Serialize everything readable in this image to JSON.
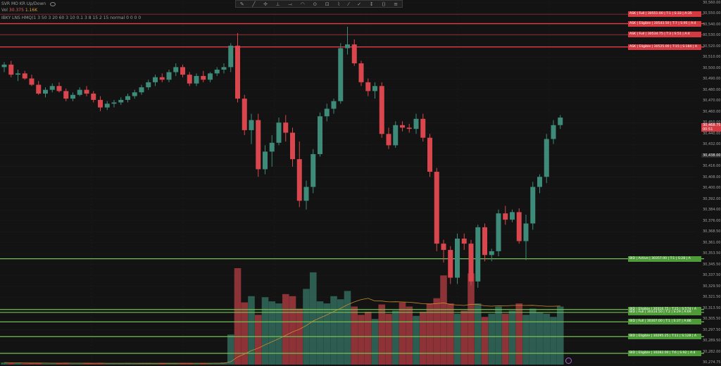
{
  "header": {
    "line1": "SVR MO KR Up/Down",
    "vol_label": "Vol",
    "vol_value1": "30.375",
    "vol_value2": "1.16K",
    "line3": "IBKY LNS HMQ)1 3 50 3 20 60 3 10 0.1 3 8 15 2 15 normal 0 0 0 0"
  },
  "toolbar": {
    "icons": [
      "✎",
      "╱",
      "✢",
      "⊥",
      "⤙",
      "◠",
      "⊙",
      "⊡",
      "⌇",
      "⁄",
      "✓",
      "↕",
      "⟨⟩",
      "≡"
    ]
  },
  "colors": {
    "up": "#3d8b78",
    "down": "#d9464d",
    "ask_line": "#e53a43",
    "bid_line": "#73c152",
    "bid_tag": "#4f9a39",
    "ask_tag": "#d33a42",
    "ma": "#c98b2e"
  },
  "chart_data": {
    "type": "candlestick",
    "ylim": [
      30274.75,
      30560
    ],
    "y_ticks": [
      "30,560.00",
      "30,550.00",
      "30,540.00",
      "30,530.00",
      "30,520.00",
      "30,510.00",
      "30,500.00",
      "30,490.00",
      "30,480.00",
      "30,470.00",
      "30,460.00",
      "30,450.00",
      "30,440.00",
      "30,432.00",
      "30,424.00",
      "30,416.00",
      "30,408.00",
      "30,400.00",
      "30,392.00",
      "30,384.00",
      "30,376.00",
      "30,368.50",
      "30,361.00",
      "30,353.50",
      "30,345.50",
      "30,337.50",
      "30,329.50",
      "30,321.50",
      "30,313.50",
      "30,305.50",
      "30,297.50",
      "30,289.50",
      "30,282.00",
      "30,274.75"
    ],
    "last_price": "30,468.75",
    "last_price_sub": "00:51",
    "crosshair_price": "30,438.00",
    "candles": [
      {
        "o": 30509,
        "h": 30513,
        "l": 30505,
        "c": 30511
      },
      {
        "o": 30511,
        "h": 30514,
        "l": 30501,
        "c": 30503
      },
      {
        "o": 30503,
        "h": 30507,
        "l": 30498,
        "c": 30504
      },
      {
        "o": 30504,
        "h": 30506,
        "l": 30499,
        "c": 30500
      },
      {
        "o": 30500,
        "h": 30503,
        "l": 30494,
        "c": 30495
      },
      {
        "o": 30495,
        "h": 30498,
        "l": 30487,
        "c": 30488
      },
      {
        "o": 30488,
        "h": 30493,
        "l": 30485,
        "c": 30491
      },
      {
        "o": 30491,
        "h": 30496,
        "l": 30489,
        "c": 30494
      },
      {
        "o": 30494,
        "h": 30497,
        "l": 30489,
        "c": 30490
      },
      {
        "o": 30490,
        "h": 30492,
        "l": 30482,
        "c": 30484
      },
      {
        "o": 30484,
        "h": 30489,
        "l": 30482,
        "c": 30487
      },
      {
        "o": 30487,
        "h": 30493,
        "l": 30486,
        "c": 30491
      },
      {
        "o": 30491,
        "h": 30494,
        "l": 30486,
        "c": 30488
      },
      {
        "o": 30488,
        "h": 30490,
        "l": 30481,
        "c": 30483
      },
      {
        "o": 30483,
        "h": 30486,
        "l": 30474,
        "c": 30477
      },
      {
        "o": 30477,
        "h": 30482,
        "l": 30475,
        "c": 30480
      },
      {
        "o": 30480,
        "h": 30483,
        "l": 30477,
        "c": 30481
      },
      {
        "o": 30481,
        "h": 30485,
        "l": 30479,
        "c": 30483
      },
      {
        "o": 30483,
        "h": 30488,
        "l": 30481,
        "c": 30486
      },
      {
        "o": 30486,
        "h": 30491,
        "l": 30484,
        "c": 30489
      },
      {
        "o": 30489,
        "h": 30495,
        "l": 30487,
        "c": 30493
      },
      {
        "o": 30493,
        "h": 30499,
        "l": 30491,
        "c": 30497
      },
      {
        "o": 30497,
        "h": 30503,
        "l": 30494,
        "c": 30501
      },
      {
        "o": 30501,
        "h": 30504,
        "l": 30497,
        "c": 30499
      },
      {
        "o": 30499,
        "h": 30507,
        "l": 30497,
        "c": 30505
      },
      {
        "o": 30505,
        "h": 30512,
        "l": 30502,
        "c": 30509
      },
      {
        "o": 30509,
        "h": 30511,
        "l": 30501,
        "c": 30503
      },
      {
        "o": 30503,
        "h": 30505,
        "l": 30494,
        "c": 30496
      },
      {
        "o": 30496,
        "h": 30504,
        "l": 30494,
        "c": 30502
      },
      {
        "o": 30502,
        "h": 30506,
        "l": 30497,
        "c": 30499
      },
      {
        "o": 30499,
        "h": 30505,
        "l": 30497,
        "c": 30504
      },
      {
        "o": 30504,
        "h": 30509,
        "l": 30502,
        "c": 30507
      },
      {
        "o": 30507,
        "h": 30512,
        "l": 30504,
        "c": 30509
      },
      {
        "o": 30509,
        "h": 30528,
        "l": 30505,
        "c": 30526
      },
      {
        "o": 30526,
        "h": 30536,
        "l": 30481,
        "c": 30484
      },
      {
        "o": 30484,
        "h": 30487,
        "l": 30455,
        "c": 30459
      },
      {
        "o": 30459,
        "h": 30472,
        "l": 30448,
        "c": 30467
      },
      {
        "o": 30467,
        "h": 30472,
        "l": 30422,
        "c": 30428
      },
      {
        "o": 30428,
        "h": 30447,
        "l": 30424,
        "c": 30442
      },
      {
        "o": 30442,
        "h": 30455,
        "l": 30430,
        "c": 30449
      },
      {
        "o": 30449,
        "h": 30469,
        "l": 30447,
        "c": 30465
      },
      {
        "o": 30465,
        "h": 30471,
        "l": 30450,
        "c": 30457
      },
      {
        "o": 30457,
        "h": 30461,
        "l": 30430,
        "c": 30436
      },
      {
        "o": 30436,
        "h": 30450,
        "l": 30398,
        "c": 30403
      },
      {
        "o": 30403,
        "h": 30419,
        "l": 30396,
        "c": 30414
      },
      {
        "o": 30414,
        "h": 30444,
        "l": 30409,
        "c": 30440
      },
      {
        "o": 30440,
        "h": 30473,
        "l": 30438,
        "c": 30470
      },
      {
        "o": 30470,
        "h": 30480,
        "l": 30466,
        "c": 30476
      },
      {
        "o": 30476,
        "h": 30484,
        "l": 30472,
        "c": 30482
      },
      {
        "o": 30482,
        "h": 30528,
        "l": 30480,
        "c": 30524
      },
      {
        "o": 30524,
        "h": 30541,
        "l": 30519,
        "c": 30527
      },
      {
        "o": 30527,
        "h": 30531,
        "l": 30510,
        "c": 30512
      },
      {
        "o": 30512,
        "h": 30514,
        "l": 30494,
        "c": 30497
      },
      {
        "o": 30497,
        "h": 30500,
        "l": 30486,
        "c": 30490
      },
      {
        "o": 30490,
        "h": 30497,
        "l": 30484,
        "c": 30494
      },
      {
        "o": 30494,
        "h": 30497,
        "l": 30453,
        "c": 30456
      },
      {
        "o": 30456,
        "h": 30461,
        "l": 30444,
        "c": 30447
      },
      {
        "o": 30447,
        "h": 30466,
        "l": 30445,
        "c": 30463
      },
      {
        "o": 30463,
        "h": 30466,
        "l": 30458,
        "c": 30461
      },
      {
        "o": 30461,
        "h": 30464,
        "l": 30457,
        "c": 30460
      },
      {
        "o": 30460,
        "h": 30472,
        "l": 30456,
        "c": 30468
      },
      {
        "o": 30468,
        "h": 30472,
        "l": 30450,
        "c": 30453
      },
      {
        "o": 30453,
        "h": 30456,
        "l": 30422,
        "c": 30426
      },
      {
        "o": 30426,
        "h": 30429,
        "l": 30363,
        "c": 30369
      },
      {
        "o": 30369,
        "h": 30372,
        "l": 30354,
        "c": 30364
      },
      {
        "o": 30364,
        "h": 30367,
        "l": 30337,
        "c": 30342
      },
      {
        "o": 30342,
        "h": 30377,
        "l": 30337,
        "c": 30373
      },
      {
        "o": 30373,
        "h": 30377,
        "l": 30364,
        "c": 30369
      },
      {
        "o": 30369,
        "h": 30372,
        "l": 30336,
        "c": 30339
      },
      {
        "o": 30339,
        "h": 30384,
        "l": 30334,
        "c": 30382
      },
      {
        "o": 30382,
        "h": 30385,
        "l": 30355,
        "c": 30360
      },
      {
        "o": 30360,
        "h": 30365,
        "l": 30355,
        "c": 30363
      },
      {
        "o": 30363,
        "h": 30396,
        "l": 30359,
        "c": 30393
      },
      {
        "o": 30393,
        "h": 30399,
        "l": 30384,
        "c": 30388
      },
      {
        "o": 30388,
        "h": 30396,
        "l": 30386,
        "c": 30394
      },
      {
        "o": 30394,
        "h": 30397,
        "l": 30369,
        "c": 30371
      },
      {
        "o": 30371,
        "h": 30392,
        "l": 30356,
        "c": 30385
      },
      {
        "o": 30385,
        "h": 30418,
        "l": 30380,
        "c": 30414
      },
      {
        "o": 30414,
        "h": 30424,
        "l": 30409,
        "c": 30422
      },
      {
        "o": 30422,
        "h": 30456,
        "l": 30417,
        "c": 30452
      },
      {
        "o": 30452,
        "h": 30467,
        "l": 30448,
        "c": 30463
      },
      {
        "o": 30463,
        "h": 30471,
        "l": 30460,
        "c": 30469
      }
    ],
    "volumes": [
      4,
      3,
      3,
      2,
      3,
      3,
      2,
      2,
      3,
      3,
      2,
      2,
      3,
      2,
      3,
      2,
      2,
      2,
      3,
      2,
      3,
      3,
      2,
      3,
      3,
      3,
      3,
      3,
      2,
      3,
      3,
      3,
      4,
      58,
      186,
      120,
      132,
      96,
      130,
      122,
      118,
      136,
      132,
      108,
      146,
      178,
      122,
      118,
      132,
      126,
      142,
      112,
      96,
      102,
      88,
      116,
      98,
      104,
      120,
      112,
      94,
      102,
      118,
      128,
      172,
      118,
      98,
      104,
      176,
      118,
      92,
      98,
      112,
      98,
      104,
      118,
      96,
      108,
      100,
      98,
      92,
      112
    ],
    "vol_max": 186
  },
  "levels": {
    "ask": [
      {
        "price": 30551,
        "label": "ASK | Full | 30551.00 | T:1 | S:33 | A:35"
      },
      {
        "price": 30543.5,
        "label": "ASK | Eligible | 30543.50 | T:7 | S:95 | A:4"
      },
      {
        "price": 30534.75,
        "label": "ASK | Full | 30534.75 | T:3 | S:51 | A:4"
      },
      {
        "price": 30525,
        "label": "ASK | Eligible | 30525.00 | T:15 | S:184 | A"
      }
    ],
    "bid": [
      {
        "price": 30357,
        "label": "BID | Active | 30357.00 | T:1 | S:28 | A"
      },
      {
        "price": 30316.75,
        "label": "BID | Eligible | 30316.75 | T:15 | S:574 | A"
      },
      {
        "price": 30314.5,
        "label": "BID | Full | 30314.50 | T:2 | S:29 | A:69"
      },
      {
        "price": 30307,
        "label": "BID | Full | 30307.00 | T:1 | S:37 | A:86"
      },
      {
        "price": 30295.25,
        "label": "BID | Eligible | 30295.25 | T:11 | S:128 | A"
      },
      {
        "price": 30282,
        "label": "BID | Eligible | 30282.00 | T:6 | S:92 | A:4"
      }
    ]
  }
}
